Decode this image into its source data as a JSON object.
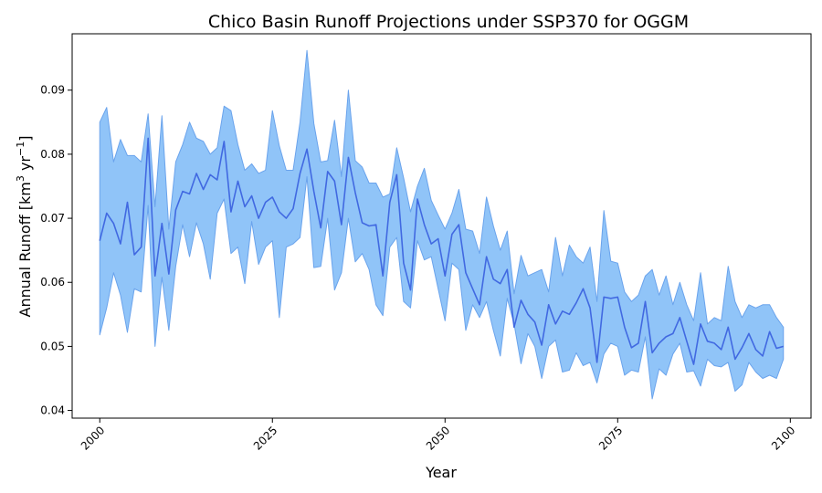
{
  "chart_data": {
    "type": "area",
    "title": "Chico Basin Runoff Projections under SSP370 for OGGM",
    "xlabel": "Year",
    "ylabel_main": "Annual Runoff [km",
    "ylabel_sup1": "3",
    "ylabel_mid": " yr",
    "ylabel_sup2": "−1",
    "ylabel_end": "]",
    "xlim": [
      1996,
      2103
    ],
    "ylim": [
      0.0388,
      0.0988
    ],
    "xticks": [
      2000,
      2025,
      2050,
      2075,
      2100
    ],
    "xtick_labels": [
      "2000",
      "2025",
      "2050",
      "2075",
      "2100"
    ],
    "yticks": [
      0.04,
      0.05,
      0.06,
      0.07,
      0.08,
      0.09
    ],
    "ytick_labels": [
      "0.04",
      "0.05",
      "0.06",
      "0.07",
      "0.08",
      "0.09"
    ],
    "grid": false,
    "colors": {
      "band_fill": "#90c4f8",
      "band_edge": "#6aa3ec",
      "line": "#4169e1"
    },
    "years": [
      2000,
      2001,
      2002,
      2003,
      2004,
      2005,
      2006,
      2007,
      2008,
      2009,
      2010,
      2011,
      2012,
      2013,
      2014,
      2015,
      2016,
      2017,
      2018,
      2019,
      2020,
      2021,
      2022,
      2023,
      2024,
      2025,
      2026,
      2027,
      2028,
      2029,
      2030,
      2031,
      2032,
      2033,
      2034,
      2035,
      2036,
      2037,
      2038,
      2039,
      2040,
      2041,
      2042,
      2043,
      2044,
      2045,
      2046,
      2047,
      2048,
      2049,
      2050,
      2051,
      2052,
      2053,
      2054,
      2055,
      2056,
      2057,
      2058,
      2059,
      2060,
      2061,
      2062,
      2063,
      2064,
      2065,
      2066,
      2067,
      2068,
      2069,
      2070,
      2071,
      2072,
      2073,
      2074,
      2075,
      2076,
      2077,
      2078,
      2079,
      2080,
      2081,
      2082,
      2083,
      2084,
      2085,
      2086,
      2087,
      2088,
      2089,
      2090,
      2091,
      2092,
      2093,
      2094,
      2095,
      2096,
      2097,
      2098,
      2099
    ],
    "series": [
      {
        "role": "mean",
        "values": [
          0.0665,
          0.0708,
          0.0692,
          0.066,
          0.0725,
          0.0643,
          0.0655,
          0.0825,
          0.061,
          0.0692,
          0.0613,
          0.0713,
          0.0742,
          0.0738,
          0.077,
          0.0745,
          0.0768,
          0.076,
          0.082,
          0.071,
          0.0758,
          0.0718,
          0.0735,
          0.07,
          0.0725,
          0.0733,
          0.071,
          0.07,
          0.0715,
          0.077,
          0.0808,
          0.0742,
          0.0685,
          0.0773,
          0.0758,
          0.069,
          0.0795,
          0.074,
          0.0693,
          0.0688,
          0.069,
          0.061,
          0.0725,
          0.0768,
          0.063,
          0.0588,
          0.073,
          0.069,
          0.066,
          0.0668,
          0.061,
          0.0675,
          0.069,
          0.0615,
          0.059,
          0.0565,
          0.064,
          0.0605,
          0.0598,
          0.062,
          0.053,
          0.0572,
          0.055,
          0.0538,
          0.0502,
          0.0565,
          0.0535,
          0.0555,
          0.055,
          0.0568,
          0.059,
          0.056,
          0.0475,
          0.0577,
          0.0575,
          0.0577,
          0.053,
          0.0498,
          0.0505,
          0.057,
          0.049,
          0.0505,
          0.0515,
          0.052,
          0.0545,
          0.0508,
          0.0472,
          0.0535,
          0.0508,
          0.0505,
          0.0495,
          0.053,
          0.048,
          0.0498,
          0.052,
          0.0495,
          0.0485,
          0.0523,
          0.0497,
          0.05
        ]
      },
      {
        "role": "upper",
        "values": [
          0.085,
          0.0873,
          0.0788,
          0.0823,
          0.0798,
          0.0798,
          0.0788,
          0.0863,
          0.0718,
          0.086,
          0.0683,
          0.0788,
          0.0815,
          0.085,
          0.0825,
          0.082,
          0.08,
          0.081,
          0.0875,
          0.0868,
          0.0815,
          0.0775,
          0.0785,
          0.077,
          0.0775,
          0.0868,
          0.0813,
          0.0775,
          0.0775,
          0.085,
          0.0962,
          0.0848,
          0.0788,
          0.079,
          0.0853,
          0.0765,
          0.09,
          0.079,
          0.078,
          0.0755,
          0.0755,
          0.0733,
          0.0738,
          0.081,
          0.0763,
          0.071,
          0.075,
          0.0778,
          0.0728,
          0.0705,
          0.0683,
          0.0708,
          0.0745,
          0.0683,
          0.068,
          0.0645,
          0.0733,
          0.0688,
          0.065,
          0.068,
          0.0582,
          0.0642,
          0.061,
          0.0615,
          0.062,
          0.0585,
          0.067,
          0.061,
          0.0658,
          0.064,
          0.063,
          0.0655,
          0.057,
          0.0712,
          0.0633,
          0.063,
          0.0585,
          0.057,
          0.058,
          0.061,
          0.062,
          0.058,
          0.061,
          0.0565,
          0.06,
          0.0565,
          0.054,
          0.0615,
          0.0535,
          0.0545,
          0.054,
          0.0625,
          0.057,
          0.0545,
          0.0565,
          0.056,
          0.0565,
          0.0565,
          0.0545,
          0.053
        ]
      },
      {
        "role": "lower",
        "values": [
          0.0518,
          0.056,
          0.0615,
          0.058,
          0.0522,
          0.059,
          0.0585,
          0.072,
          0.05,
          0.0608,
          0.0525,
          0.0625,
          0.069,
          0.064,
          0.0693,
          0.066,
          0.0605,
          0.0708,
          0.073,
          0.0645,
          0.0655,
          0.0598,
          0.0695,
          0.0628,
          0.0655,
          0.0665,
          0.0545,
          0.0655,
          0.066,
          0.067,
          0.0765,
          0.0623,
          0.0625,
          0.07,
          0.0588,
          0.0615,
          0.07,
          0.0632,
          0.0645,
          0.062,
          0.0565,
          0.0548,
          0.0655,
          0.067,
          0.057,
          0.056,
          0.0665,
          0.0635,
          0.064,
          0.059,
          0.054,
          0.063,
          0.062,
          0.0525,
          0.0565,
          0.0545,
          0.057,
          0.0525,
          0.0485,
          0.0575,
          0.0535,
          0.0473,
          0.052,
          0.05,
          0.045,
          0.05,
          0.051,
          0.046,
          0.0463,
          0.049,
          0.047,
          0.0475,
          0.0443,
          0.0488,
          0.0505,
          0.05,
          0.0455,
          0.0463,
          0.046,
          0.0515,
          0.0418,
          0.0465,
          0.0455,
          0.0488,
          0.0505,
          0.046,
          0.0462,
          0.0438,
          0.048,
          0.047,
          0.0468,
          0.0475,
          0.043,
          0.044,
          0.0475,
          0.046,
          0.045,
          0.0455,
          0.045,
          0.048
        ]
      }
    ]
  }
}
